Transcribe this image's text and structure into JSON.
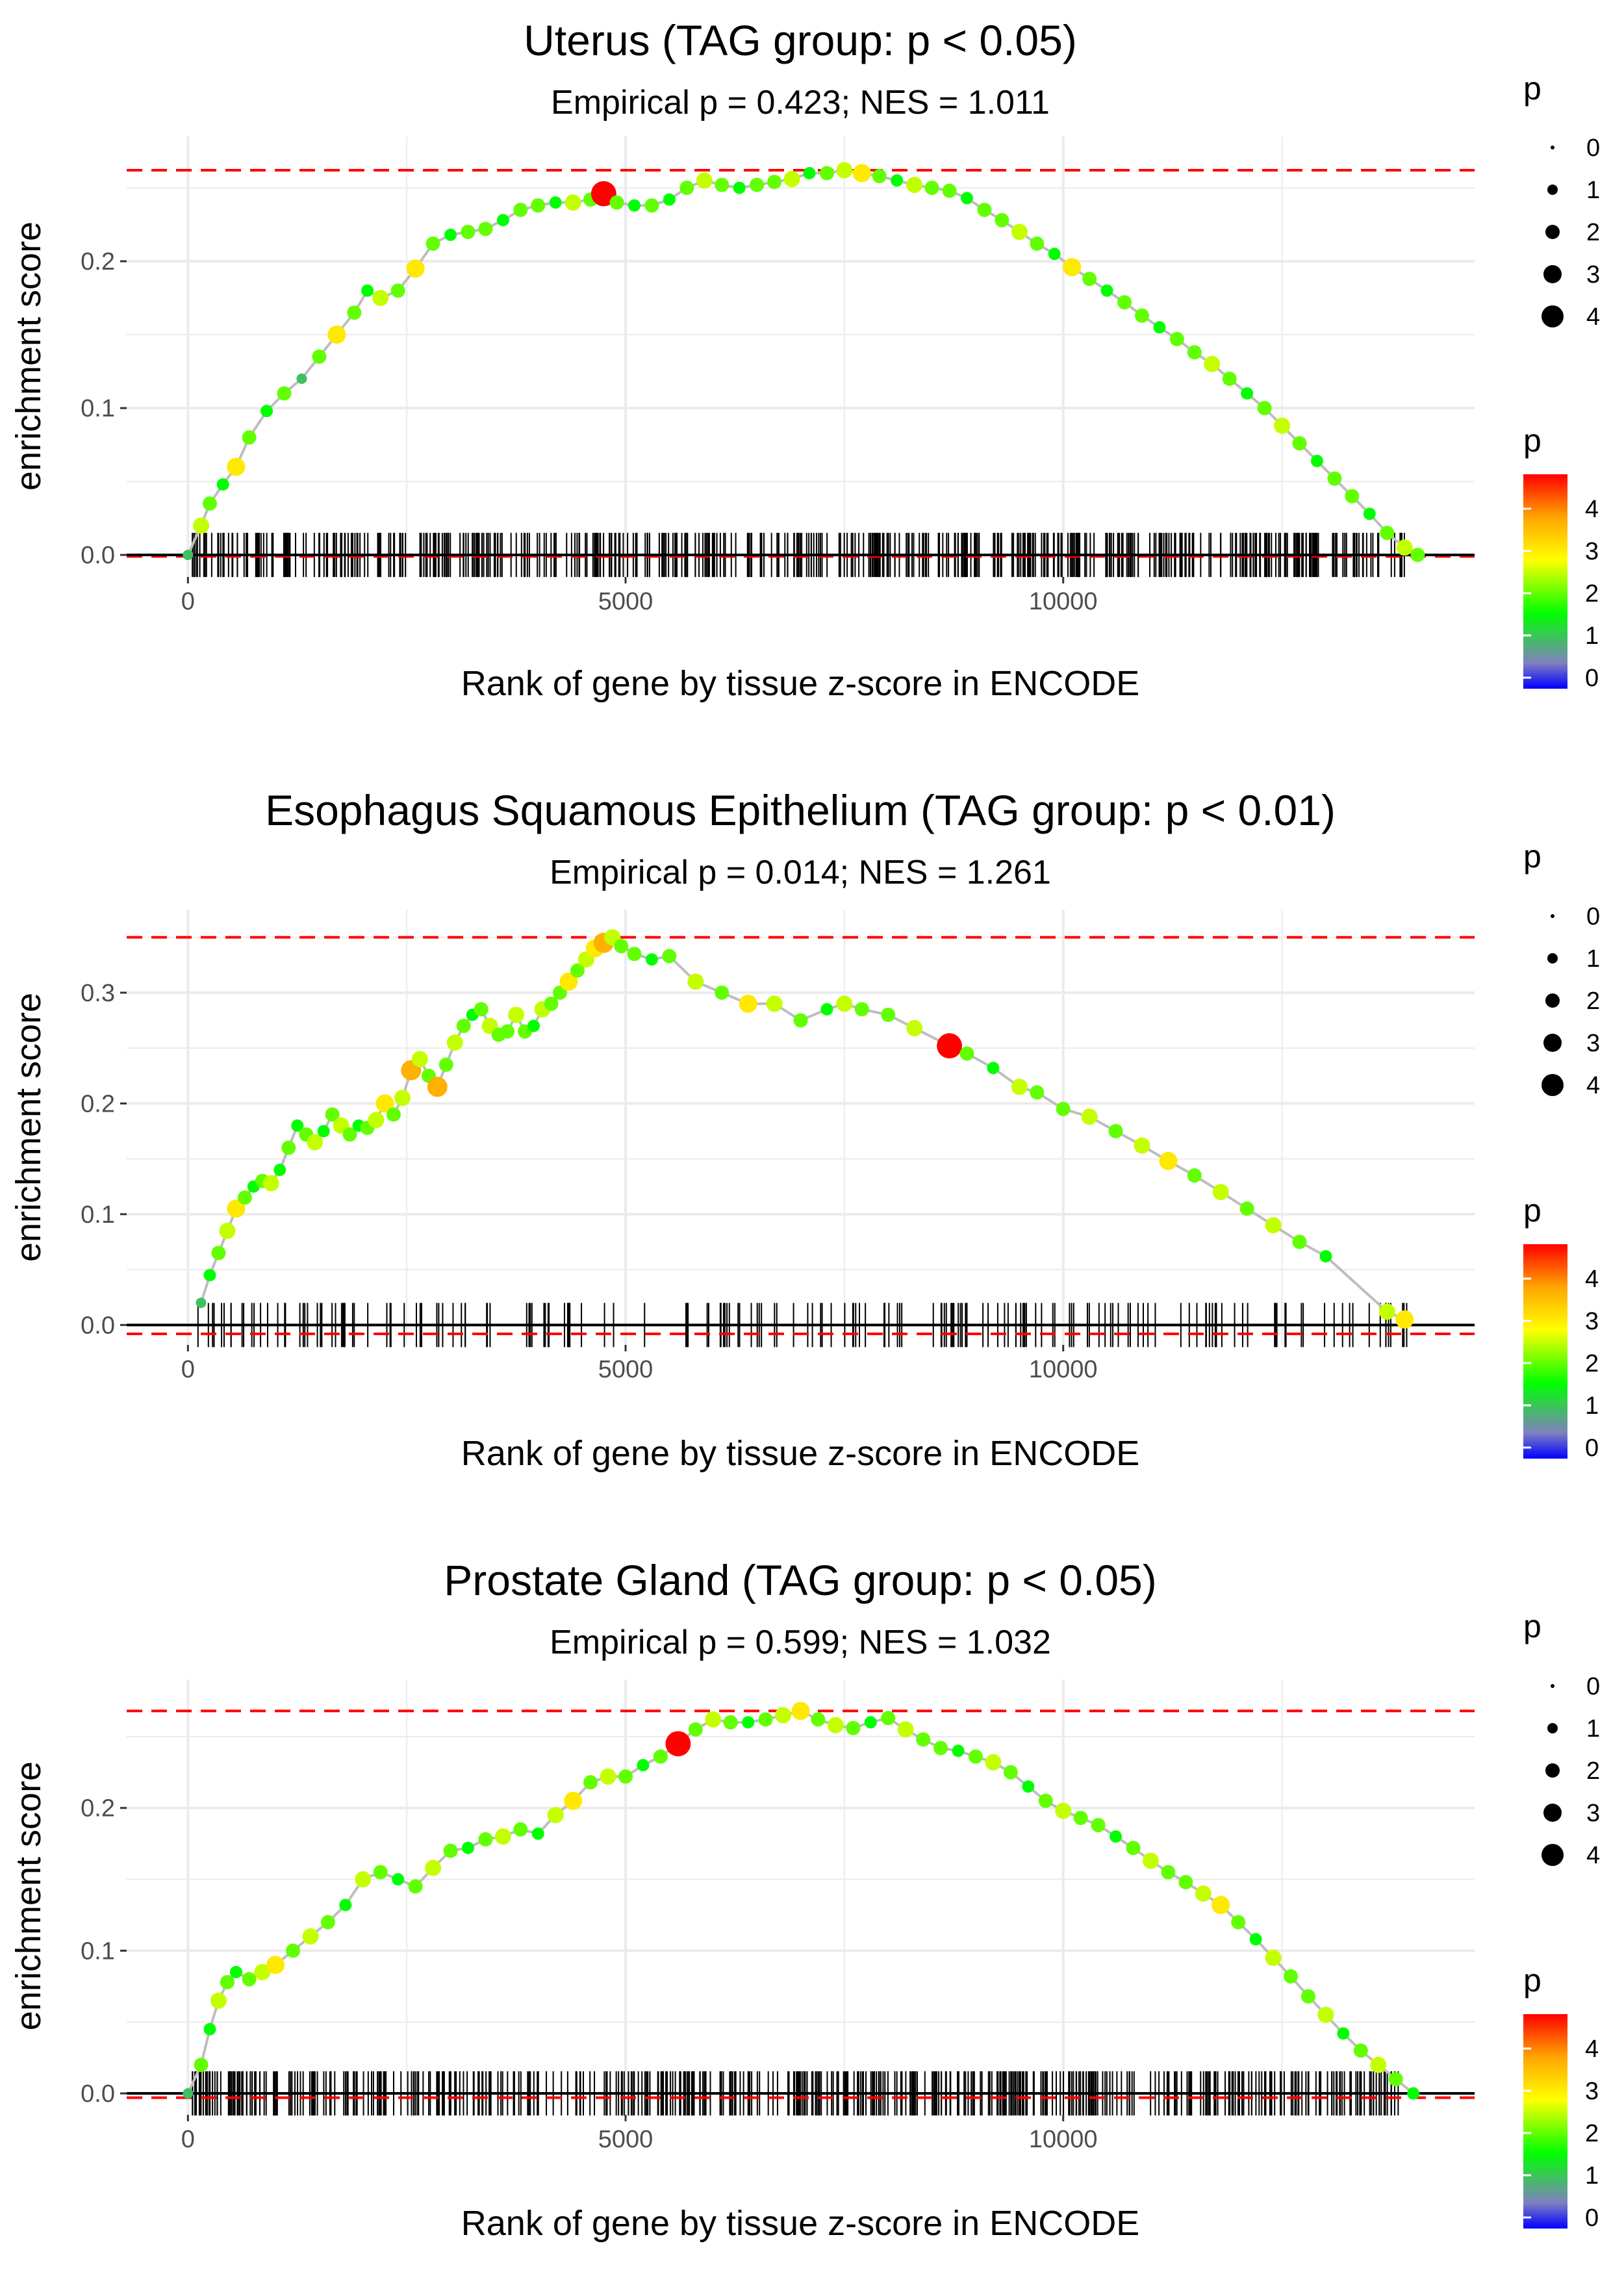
{
  "chart_data": [
    {
      "type": "line",
      "title": "Uterus (TAG group: p < 0.05)",
      "subtitle": "Empirical p = 0.423; NES = 1.011",
      "xlabel": "Rank of gene by tissue z-score in ENCODE",
      "ylabel": "enrichment score",
      "xlim": [
        -700,
        14700
      ],
      "ylim": [
        -0.015,
        0.285
      ],
      "x_ticks": [
        0,
        5000,
        10000
      ],
      "x_tick_labels": [
        "0",
        "5000",
        "10000"
      ],
      "y_ticks": [
        0.0,
        0.1,
        0.2
      ],
      "y_tick_labels": [
        "0.0",
        "0.1",
        "0.2"
      ],
      "max_es": 0.262,
      "min_es": -0.001,
      "series": {
        "name": "running enrichment score",
        "x": [
          0,
          150,
          250,
          400,
          550,
          700,
          900,
          1100,
          1300,
          1500,
          1700,
          1900,
          2050,
          2200,
          2400,
          2600,
          2800,
          3000,
          3200,
          3400,
          3600,
          3800,
          4000,
          4200,
          4400,
          4600,
          4750,
          4900,
          5100,
          5300,
          5500,
          5700,
          5900,
          6100,
          6300,
          6500,
          6700,
          6900,
          7100,
          7300,
          7500,
          7700,
          7900,
          8100,
          8300,
          8500,
          8700,
          8900,
          9100,
          9300,
          9500,
          9700,
          9900,
          10100,
          10300,
          10500,
          10700,
          10900,
          11100,
          11300,
          11500,
          11700,
          11900,
          12100,
          12300,
          12500,
          12700,
          12900,
          13100,
          13300,
          13500,
          13700,
          13900,
          14050
        ],
        "y": [
          0.0,
          0.02,
          0.035,
          0.048,
          0.06,
          0.08,
          0.098,
          0.11,
          0.12,
          0.135,
          0.15,
          0.165,
          0.18,
          0.175,
          0.18,
          0.195,
          0.212,
          0.218,
          0.22,
          0.222,
          0.228,
          0.235,
          0.238,
          0.24,
          0.24,
          0.242,
          0.246,
          0.24,
          0.238,
          0.238,
          0.242,
          0.25,
          0.255,
          0.252,
          0.25,
          0.252,
          0.254,
          0.256,
          0.26,
          0.26,
          0.262,
          0.26,
          0.258,
          0.255,
          0.252,
          0.25,
          0.248,
          0.243,
          0.235,
          0.228,
          0.22,
          0.212,
          0.205,
          0.196,
          0.188,
          0.18,
          0.172,
          0.163,
          0.155,
          0.147,
          0.138,
          0.13,
          0.12,
          0.11,
          0.1,
          0.088,
          0.076,
          0.064,
          0.052,
          0.04,
          0.028,
          0.015,
          0.005,
          0.0
        ],
        "p": [
          1,
          2.5,
          2,
          1.5,
          3,
          2,
          1.5,
          2,
          1,
          2,
          3,
          2,
          1.5,
          2.5,
          2,
          3,
          2,
          1.5,
          2,
          2,
          1.5,
          2,
          2,
          1.5,
          2.5,
          2,
          4.8,
          2,
          1.5,
          2,
          1.5,
          2,
          2.5,
          2,
          1.5,
          2,
          2,
          2.5,
          1.5,
          2,
          2.5,
          3,
          2,
          1.5,
          2.5,
          2,
          2,
          1.5,
          2,
          2,
          2.5,
          2,
          1.5,
          3,
          2,
          1.5,
          2,
          2,
          1.5,
          2,
          2,
          2.5,
          2,
          1.5,
          2,
          2.5,
          2,
          1.5,
          2,
          2,
          1.5,
          2,
          2.5,
          2
        ]
      },
      "rug": {
        "x_start": 50,
        "x_end": 13950,
        "count": 520,
        "style": "dense"
      }
    },
    {
      "type": "line",
      "title": "Esophagus Squamous Epithelium (TAG group: p < 0.01)",
      "subtitle": "Empirical p = 0.014; NES = 1.261",
      "xlabel": "Rank of gene by tissue z-score in ENCODE",
      "ylabel": "enrichment score",
      "xlim": [
        -700,
        14700
      ],
      "ylim": [
        -0.018,
        0.375
      ],
      "x_ticks": [
        0,
        5000,
        10000
      ],
      "x_tick_labels": [
        "0",
        "5000",
        "10000"
      ],
      "y_ticks": [
        0.0,
        0.1,
        0.2,
        0.3
      ],
      "y_tick_labels": [
        "0.0",
        "0.1",
        "0.2",
        "0.3"
      ],
      "max_es": 0.35,
      "min_es": -0.008,
      "series": {
        "name": "running enrichment score",
        "x": [
          150,
          250,
          350,
          450,
          550,
          650,
          750,
          850,
          950,
          1050,
          1150,
          1250,
          1350,
          1450,
          1550,
          1650,
          1750,
          1850,
          1950,
          2050,
          2150,
          2250,
          2350,
          2450,
          2550,
          2650,
          2750,
          2850,
          2950,
          3050,
          3150,
          3250,
          3350,
          3450,
          3550,
          3650,
          3750,
          3850,
          3950,
          4050,
          4150,
          4250,
          4350,
          4450,
          4550,
          4650,
          4750,
          4850,
          4950,
          5100,
          5300,
          5500,
          5800,
          6100,
          6400,
          6700,
          7000,
          7300,
          7500,
          7700,
          8000,
          8300,
          8700,
          8900,
          9200,
          9500,
          9700,
          10000,
          10300,
          10600,
          10900,
          11200,
          11500,
          11800,
          12100,
          12400,
          12700,
          13000,
          13700,
          13900
        ],
        "y": [
          0.02,
          0.045,
          0.065,
          0.085,
          0.105,
          0.115,
          0.125,
          0.13,
          0.128,
          0.14,
          0.16,
          0.18,
          0.172,
          0.165,
          0.175,
          0.19,
          0.18,
          0.172,
          0.18,
          0.178,
          0.185,
          0.2,
          0.19,
          0.205,
          0.23,
          0.24,
          0.225,
          0.215,
          0.235,
          0.255,
          0.27,
          0.28,
          0.285,
          0.27,
          0.262,
          0.265,
          0.28,
          0.265,
          0.27,
          0.285,
          0.29,
          0.3,
          0.31,
          0.32,
          0.33,
          0.34,
          0.345,
          0.35,
          0.342,
          0.335,
          0.33,
          0.333,
          0.31,
          0.3,
          0.29,
          0.29,
          0.275,
          0.285,
          0.29,
          0.285,
          0.28,
          0.268,
          0.252,
          0.245,
          0.232,
          0.215,
          0.21,
          0.195,
          0.188,
          0.175,
          0.162,
          0.148,
          0.135,
          0.12,
          0.105,
          0.09,
          0.075,
          0.062,
          0.012,
          0.005
        ],
        "p": [
          1,
          1.5,
          2,
          2.5,
          3,
          2,
          1.5,
          2,
          2.5,
          1.5,
          2,
          1.5,
          2,
          2.5,
          1.5,
          2,
          2.5,
          2,
          1.5,
          2,
          2.5,
          3,
          2,
          2.5,
          3.5,
          2.5,
          2,
          3.5,
          2,
          2.5,
          2,
          1.5,
          2,
          2.5,
          2,
          2,
          2.5,
          2,
          1.5,
          2.5,
          2,
          2,
          3,
          2,
          2.5,
          3,
          3.5,
          2.5,
          2,
          2,
          1.5,
          2,
          2.5,
          2,
          3,
          2.5,
          2,
          1.5,
          2.5,
          2,
          2,
          2.5,
          4.8,
          2,
          1.5,
          2.5,
          2,
          2,
          2.5,
          2,
          2.5,
          3,
          2,
          2.5,
          2,
          2.5,
          2,
          1.5,
          2.5,
          3
        ]
      },
      "rug": {
        "x_start": 100,
        "x_end": 13950,
        "count": 190,
        "style": "sparse"
      }
    },
    {
      "type": "line",
      "title": "Prostate Gland (TAG group: p < 0.05)",
      "subtitle": "Empirical p = 0.599; NES = 1.032",
      "xlabel": "Rank of gene by tissue z-score in ENCODE",
      "ylabel": "enrichment score",
      "xlim": [
        -700,
        14700
      ],
      "ylim": [
        -0.015,
        0.29
      ],
      "x_ticks": [
        0,
        5000,
        10000
      ],
      "x_tick_labels": [
        "0",
        "5000",
        "10000"
      ],
      "y_ticks": [
        0.0,
        0.1,
        0.2
      ],
      "y_tick_labels": [
        "0.0",
        "0.1",
        "0.2"
      ],
      "max_es": 0.268,
      "min_es": -0.003,
      "series": {
        "name": "running enrichment score",
        "x": [
          0,
          150,
          250,
          350,
          450,
          550,
          700,
          850,
          1000,
          1200,
          1400,
          1600,
          1800,
          2000,
          2200,
          2400,
          2600,
          2800,
          3000,
          3200,
          3400,
          3600,
          3800,
          4000,
          4200,
          4400,
          4600,
          4800,
          5000,
          5200,
          5400,
          5600,
          5800,
          6000,
          6200,
          6400,
          6600,
          6800,
          7000,
          7200,
          7400,
          7600,
          7800,
          8000,
          8200,
          8400,
          8600,
          8800,
          9000,
          9200,
          9400,
          9600,
          9800,
          10000,
          10200,
          10400,
          10600,
          10800,
          11000,
          11200,
          11400,
          11600,
          11800,
          12000,
          12200,
          12400,
          12600,
          12800,
          13000,
          13200,
          13400,
          13600,
          13800,
          14000
        ],
        "y": [
          0.0,
          0.02,
          0.045,
          0.065,
          0.078,
          0.085,
          0.08,
          0.085,
          0.09,
          0.1,
          0.11,
          0.12,
          0.132,
          0.15,
          0.155,
          0.15,
          0.145,
          0.158,
          0.17,
          0.172,
          0.178,
          0.18,
          0.185,
          0.182,
          0.195,
          0.205,
          0.218,
          0.222,
          0.222,
          0.23,
          0.236,
          0.245,
          0.255,
          0.262,
          0.26,
          0.26,
          0.262,
          0.265,
          0.268,
          0.262,
          0.258,
          0.256,
          0.26,
          0.263,
          0.255,
          0.248,
          0.242,
          0.24,
          0.236,
          0.232,
          0.225,
          0.215,
          0.205,
          0.198,
          0.193,
          0.188,
          0.18,
          0.172,
          0.163,
          0.155,
          0.148,
          0.14,
          0.132,
          0.12,
          0.108,
          0.095,
          0.082,
          0.068,
          0.055,
          0.042,
          0.03,
          0.02,
          0.01,
          0.0
        ],
        "p": [
          1,
          2,
          1.5,
          2.5,
          2,
          1.5,
          2,
          2.5,
          3,
          2,
          2.5,
          2,
          1.5,
          2.5,
          2,
          1.5,
          2,
          2.5,
          2,
          1.5,
          2,
          2.5,
          2,
          1.5,
          2.5,
          3,
          2,
          2.5,
          2,
          1.5,
          2,
          4.8,
          2,
          2.5,
          2,
          1.5,
          2,
          2.5,
          3,
          2,
          2.5,
          2,
          1.5,
          2,
          2.5,
          2,
          2,
          1.5,
          2,
          2.5,
          2,
          1.5,
          2,
          2.5,
          2,
          2,
          1.5,
          2,
          2.5,
          2,
          2,
          2.5,
          3,
          2,
          1.5,
          2.5,
          2,
          2,
          2.5,
          1.5,
          2,
          2.5,
          2,
          1.5
        ]
      },
      "rug": {
        "x_start": 50,
        "x_end": 13950,
        "count": 520,
        "style": "dense"
      }
    }
  ],
  "legends": [
    {
      "size_title": "p",
      "size_labels": [
        "0",
        "1",
        "2",
        "3",
        "4"
      ],
      "color_title": "p",
      "color_labels": [
        "4",
        "3",
        "2",
        "1",
        "0"
      ]
    },
    {
      "size_title": "p",
      "size_labels": [
        "0",
        "1",
        "2",
        "3",
        "4"
      ],
      "color_title": "p",
      "color_labels": [
        "4",
        "3",
        "2",
        "1",
        "0"
      ]
    },
    {
      "size_title": "p",
      "size_labels": [
        "0",
        "1",
        "2",
        "3",
        "4"
      ],
      "color_title": "p",
      "color_labels": [
        "4",
        "3",
        "2",
        "1",
        "0"
      ]
    }
  ],
  "colors": {
    "gradient_stops": [
      "#0000ff",
      "#8080c0",
      "#00ff00",
      "#ffff00",
      "#ffa500",
      "#ff0000"
    ],
    "reference_line": "#ff0000",
    "path_line": "#bebebe",
    "gridline": "#ebebeb",
    "rug": "#000000"
  }
}
